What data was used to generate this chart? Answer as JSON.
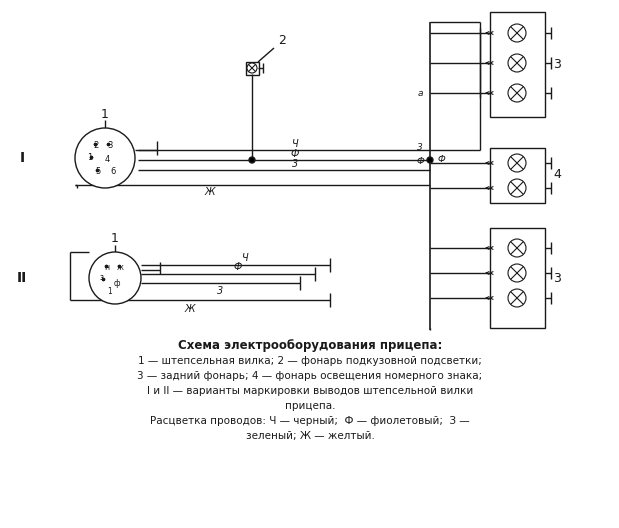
{
  "title": "Схема электрооборудования прицепа:",
  "caption_lines": [
    "1 — штепсельная вилка; 2 — фонарь подкузовной подсветки;",
    "3 — задний фонарь; 4 — фонарь освещения номерного знака;",
    "I и II — варианты маркировки выводов штепсельной вилки",
    "прицепа.",
    "Расцветка проводов: Ч — черный;  Ф — фиолетовый;  З —\tзеленый; Ж — желтый."
  ],
  "bg_color": "#ffffff",
  "line_color": "#1a1a1a",
  "figsize": [
    6.19,
    5.28
  ],
  "dpi": 100
}
